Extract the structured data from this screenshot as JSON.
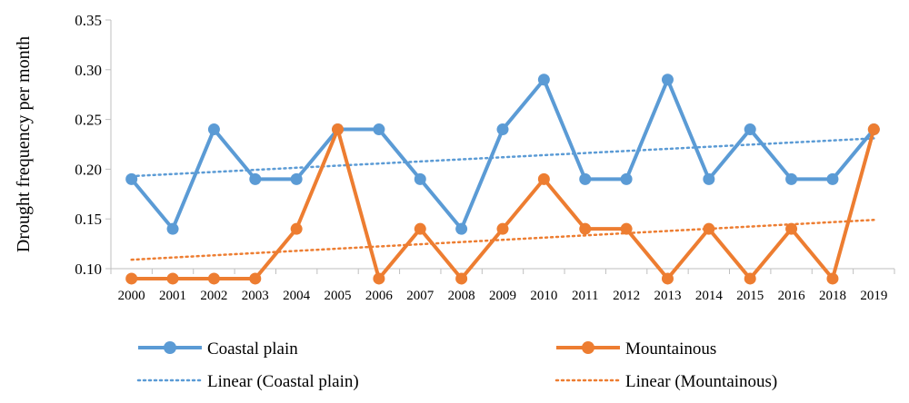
{
  "chart_data": {
    "type": "line",
    "title": "",
    "xlabel": "",
    "ylabel": "Drought frequency per month",
    "ylim": [
      0.1,
      0.35
    ],
    "yticks": [
      "0.10",
      "0.15",
      "0.20",
      "0.25",
      "0.30",
      "0.35"
    ],
    "categories": [
      "2000",
      "2001",
      "2002",
      "2003",
      "2004",
      "2005",
      "2006",
      "2007",
      "2008",
      "2009",
      "2010",
      "2011",
      "2012",
      "2013",
      "2014",
      "2015",
      "2016",
      "2018",
      "2019"
    ],
    "series": [
      {
        "name": "Coastal plain",
        "color": "#5B9BD5",
        "values": [
          0.19,
          0.14,
          0.24,
          0.19,
          0.19,
          0.24,
          0.24,
          0.19,
          0.14,
          0.24,
          0.29,
          0.19,
          0.19,
          0.29,
          0.19,
          0.24,
          0.19,
          0.19,
          0.24
        ]
      },
      {
        "name": "Mountainous",
        "color": "#ED7D31",
        "values": [
          0.09,
          0.09,
          0.09,
          0.09,
          0.14,
          0.24,
          0.09,
          0.14,
          0.09,
          0.14,
          0.19,
          0.14,
          0.14,
          0.09,
          0.14,
          0.09,
          0.14,
          0.09,
          0.24
        ]
      }
    ],
    "trendlines": [
      {
        "name": "Linear (Coastal plain)",
        "color": "#5B9BD5",
        "start": 0.193,
        "end": 0.231
      },
      {
        "name": "Linear (Mountainous)",
        "color": "#ED7D31",
        "start": 0.109,
        "end": 0.149
      }
    ],
    "grid": false,
    "legend_position": "bottom"
  }
}
